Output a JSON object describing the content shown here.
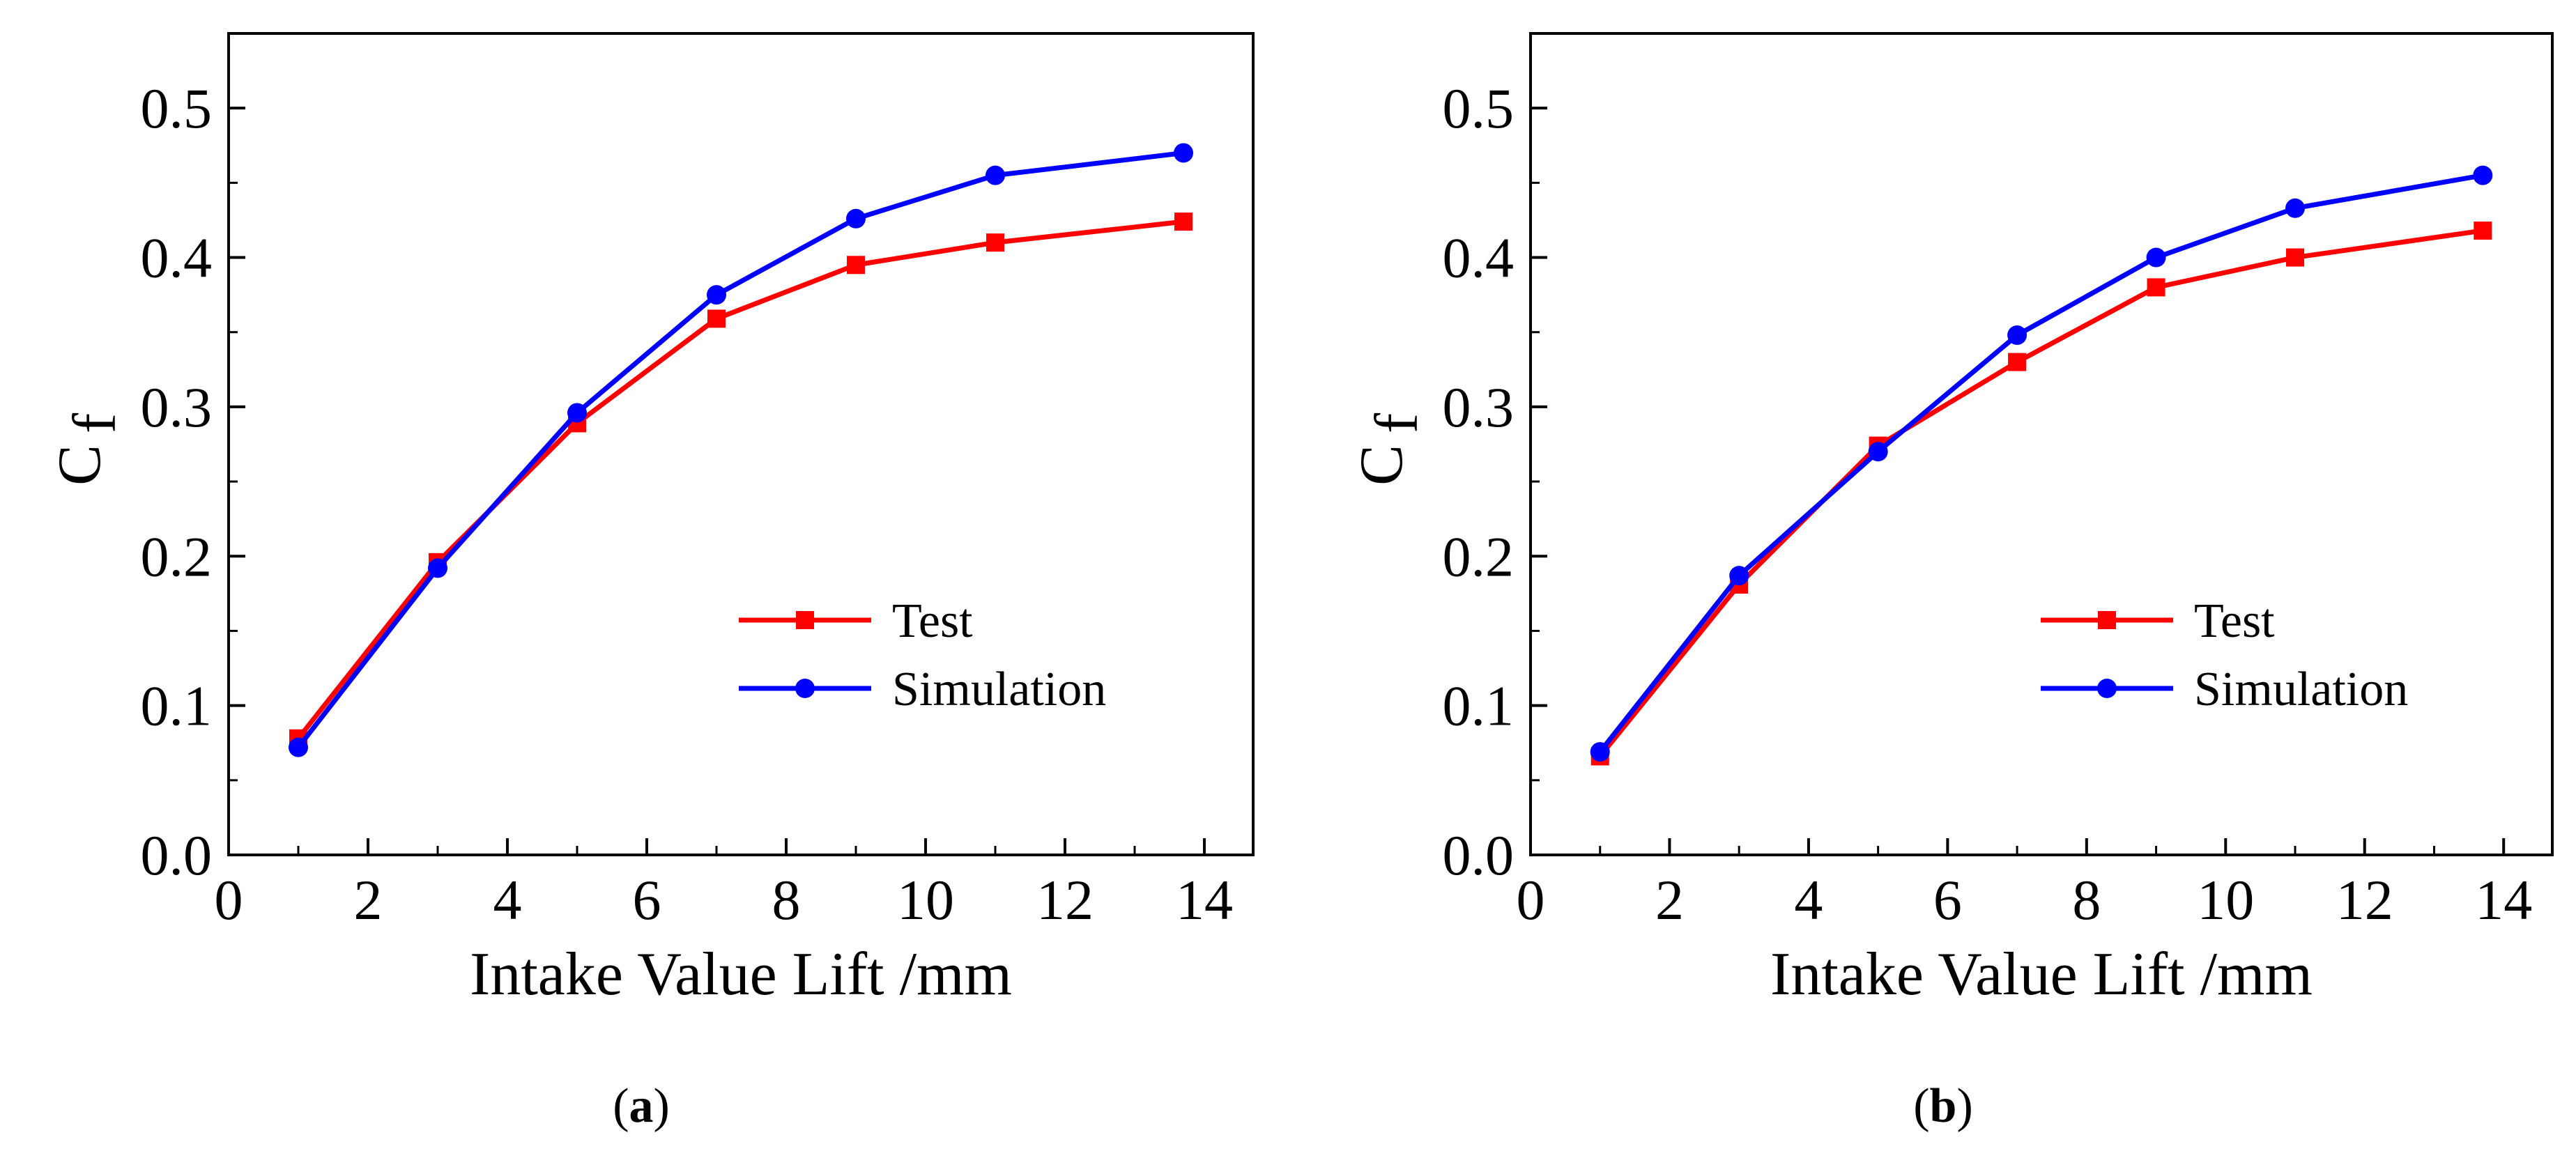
{
  "chart_data": [
    {
      "type": "line",
      "panel_label": "a",
      "xlabel": "Intake Value Lift /mm",
      "ylabel": {
        "base": "C",
        "subscript": "f"
      },
      "xlim": [
        0,
        14.7
      ],
      "ylim": [
        0,
        0.55
      ],
      "xticks": [
        0,
        2,
        4,
        6,
        8,
        10,
        12,
        14
      ],
      "xtick_labels": [
        "0",
        "2",
        "4",
        "6",
        "8",
        "10",
        "12",
        "14"
      ],
      "yticks": [
        0.0,
        0.1,
        0.2,
        0.3,
        0.4,
        0.5
      ],
      "ytick_labels": [
        "0.0",
        "0.1",
        "0.2",
        "0.3",
        "0.4",
        "0.5"
      ],
      "grid": false,
      "legend_position": "center-right",
      "x": [
        1,
        3,
        5,
        7,
        9,
        11,
        13.7
      ],
      "series": [
        {
          "name": "Test",
          "marker": "square",
          "color": "#ff0000",
          "values": [
            0.078,
            0.196,
            0.289,
            0.359,
            0.395,
            0.41,
            0.424
          ]
        },
        {
          "name": "Simulation",
          "marker": "circle",
          "color": "#0000ff",
          "values": [
            0.072,
            0.192,
            0.296,
            0.375,
            0.426,
            0.455,
            0.47
          ]
        }
      ]
    },
    {
      "type": "line",
      "panel_label": "b",
      "xlabel": "Intake Value Lift /mm",
      "ylabel": {
        "base": "C",
        "subscript": "f"
      },
      "xlim": [
        0,
        14.7
      ],
      "ylim": [
        0,
        0.55
      ],
      "xticks": [
        0,
        2,
        4,
        6,
        8,
        10,
        12,
        14
      ],
      "xtick_labels": [
        "0",
        "2",
        "4",
        "6",
        "8",
        "10",
        "12",
        "14"
      ],
      "yticks": [
        0.0,
        0.1,
        0.2,
        0.3,
        0.4,
        0.5
      ],
      "ytick_labels": [
        "0.0",
        "0.1",
        "0.2",
        "0.3",
        "0.4",
        "0.5"
      ],
      "grid": false,
      "legend_position": "center-right",
      "x": [
        1,
        3,
        5,
        7,
        9,
        11,
        13.7
      ],
      "series": [
        {
          "name": "Test",
          "marker": "square",
          "color": "#ff0000",
          "values": [
            0.066,
            0.181,
            0.274,
            0.33,
            0.38,
            0.4,
            0.418
          ]
        },
        {
          "name": "Simulation",
          "marker": "circle",
          "color": "#0000ff",
          "values": [
            0.069,
            0.187,
            0.27,
            0.348,
            0.4,
            0.433,
            0.455
          ]
        }
      ]
    }
  ]
}
